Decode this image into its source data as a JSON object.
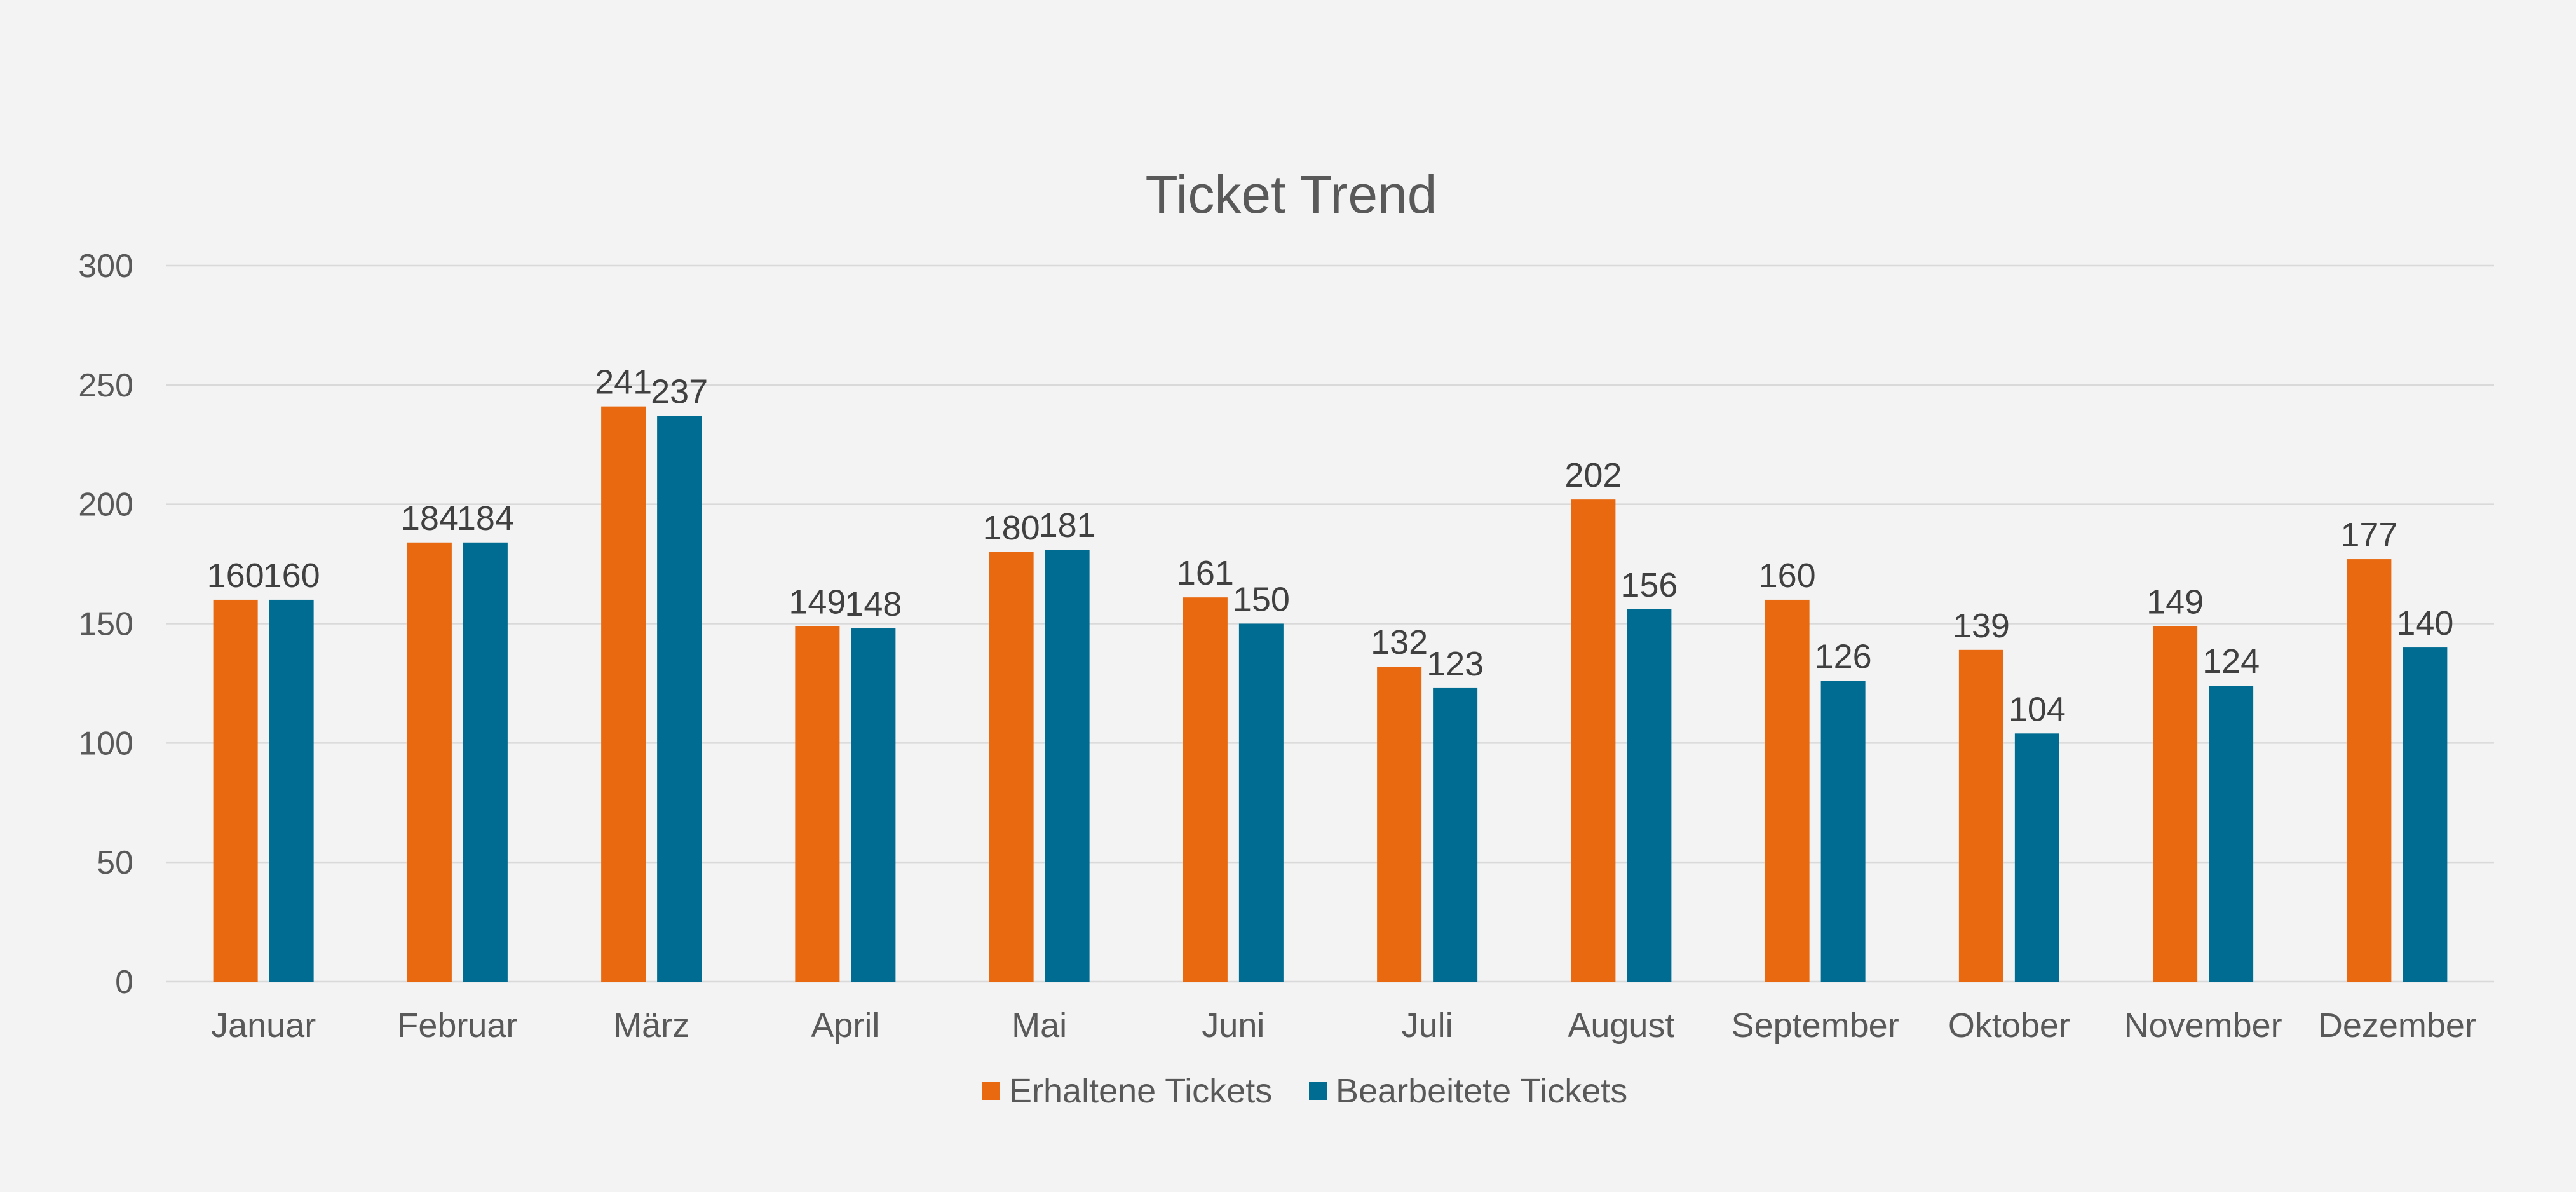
{
  "chart_data": {
    "type": "bar",
    "title": "Ticket Trend",
    "xlabel": "",
    "ylabel": "",
    "categories": [
      "Januar",
      "Februar",
      "März",
      "April",
      "Mai",
      "Juni",
      "Juli",
      "August",
      "September",
      "Oktober",
      "November",
      "Dezember"
    ],
    "series": [
      {
        "name": "Erhaltene Tickets",
        "color": "#e8690f",
        "values": [
          160,
          184,
          241,
          149,
          180,
          161,
          132,
          202,
          160,
          139,
          149,
          177
        ]
      },
      {
        "name": "Bearbeitete Tickets",
        "color": "#006c91",
        "values": [
          160,
          184,
          237,
          148,
          181,
          150,
          123,
          156,
          126,
          104,
          124,
          140
        ]
      }
    ],
    "ylim": [
      0,
      300
    ],
    "yticks": [
      0,
      50,
      100,
      150,
      200,
      250,
      300
    ],
    "grid": true,
    "data_labels": true,
    "legend_position": "bottom"
  }
}
